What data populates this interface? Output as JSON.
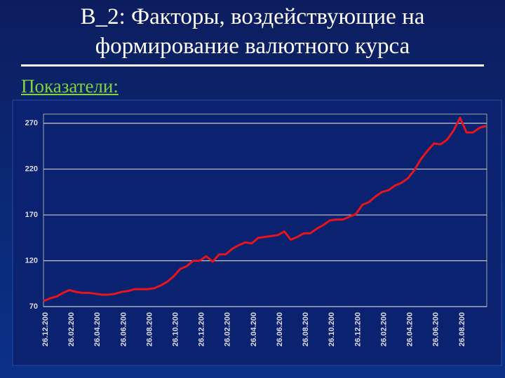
{
  "slide": {
    "title_line1": "В_2: Факторы, воздействующие на",
    "title_line2": "формирование валютного курса",
    "subtitle": "Показатели:"
  },
  "chart_data": {
    "type": "line",
    "categories": [
      "26.12.200",
      null,
      null,
      null,
      "26.02.200",
      null,
      null,
      null,
      "26.04.200",
      null,
      null,
      null,
      "26.06.200",
      null,
      null,
      null,
      "26.08.200",
      null,
      null,
      null,
      "26.10.200",
      null,
      null,
      null,
      "26.12.200",
      null,
      null,
      null,
      "26.02.200",
      null,
      null,
      null,
      "26.04.200",
      null,
      null,
      null,
      "26.06.200",
      null,
      null,
      null,
      "26.08.200",
      null,
      null,
      null,
      "26.10.200",
      null,
      null,
      null,
      "26.12.200",
      null,
      null,
      null,
      "26.02.200",
      null,
      null,
      null,
      "26.04.200",
      null,
      null,
      null,
      "26.06.200",
      null,
      null,
      null,
      "26.08.200",
      null,
      null,
      null,
      null
    ],
    "values": [
      76,
      79,
      81,
      85,
      88,
      86,
      85,
      85,
      84,
      83,
      83,
      84,
      86,
      87,
      89,
      89,
      89,
      90,
      93,
      97,
      103,
      111,
      114,
      120,
      120,
      125,
      119,
      127,
      127,
      133,
      137,
      140,
      139,
      145,
      146,
      147,
      148,
      152,
      143,
      146,
      150,
      150,
      155,
      159,
      164,
      165,
      165,
      168,
      171,
      181,
      184,
      190,
      195,
      197,
      202,
      205,
      210,
      219,
      231,
      240,
      248,
      247,
      252,
      262,
      276,
      260,
      260,
      265,
      267
    ],
    "color": "#e8141c",
    "ylim": [
      70,
      280
    ],
    "yticks": [
      70,
      120,
      170,
      220,
      270
    ],
    "grid": true
  }
}
